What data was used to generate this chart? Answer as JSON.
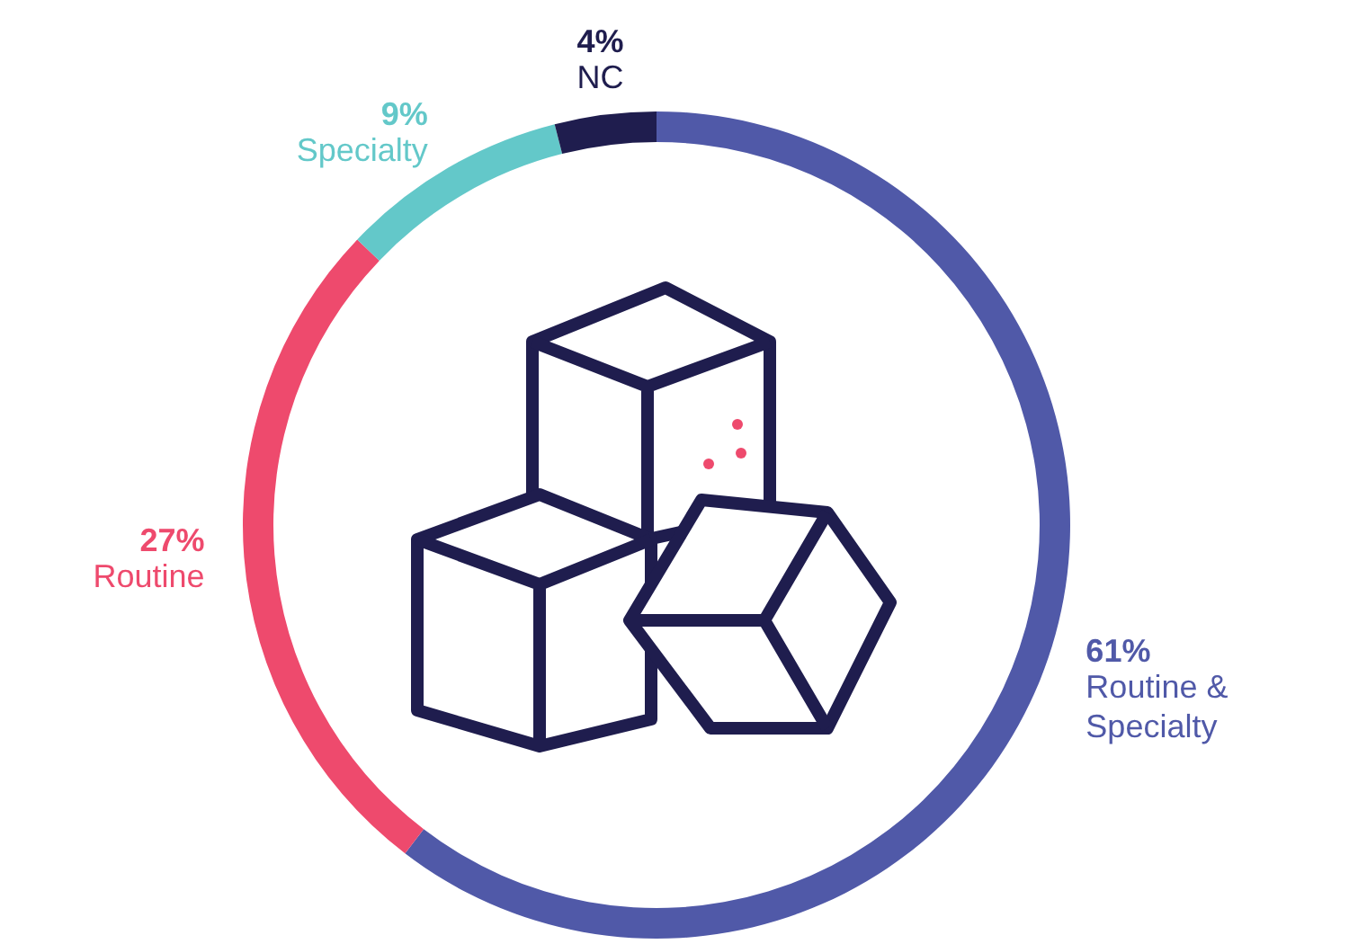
{
  "chart_data": {
    "type": "donut",
    "categories": [
      "Routine & Specialty",
      "Routine",
      "Specialty",
      "NC"
    ],
    "values": [
      61,
      27,
      9,
      4
    ],
    "value_labels": [
      "61%",
      "27%",
      "9%",
      "4%"
    ],
    "colors": [
      "#5059a8",
      "#ee4a6d",
      "#63c8c9",
      "#1f1d4e"
    ]
  }
}
